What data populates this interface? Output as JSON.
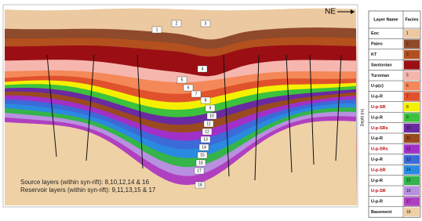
{
  "section": {
    "direction": "NE",
    "depth_label": "Depth (m)",
    "notes": [
      "Source layers (within syn-rift): 8,10,12,14 & 16",
      "Reservoir layers (within syn-rift): 9,11,13,15 & 17"
    ],
    "labels": [
      "1",
      "2",
      "3",
      "4",
      "5",
      "6",
      "7",
      "8",
      "9",
      "10",
      "11",
      "12",
      "13",
      "14",
      "15",
      "16",
      "17",
      "18"
    ]
  },
  "legend": {
    "header": [
      "Layer Name",
      "Facies"
    ],
    "rows": [
      {
        "name": "Eoc",
        "facies": "1",
        "color": "#ecc9a0"
      },
      {
        "name": "Paleo",
        "facies": "2",
        "color": "#8e4a2a"
      },
      {
        "name": "KT",
        "facies": "3",
        "color": "#b3501e"
      },
      {
        "name": "Santonian",
        "color": "#9b0f14"
      },
      {
        "name": "Turonian",
        "facies": "5",
        "color": "#f6b6ae"
      },
      {
        "name": "U-p(c)",
        "facies": "6",
        "color": "#f48858"
      },
      {
        "name": "U-p-R",
        "facies": "7",
        "color": "#e0522c"
      },
      {
        "name": "U-p-SR",
        "facies": "8",
        "color": "#f5f000",
        "text_color": "#c00000"
      },
      {
        "name": "U-p-R",
        "facies": "9",
        "color": "#3cc23c"
      },
      {
        "name": "U-p-SRs",
        "facies": "10",
        "color": "#6a2aa0",
        "text_color": "#c00000"
      },
      {
        "name": "U-p-R",
        "facies": "11",
        "color": "#9a4a20"
      },
      {
        "name": "U-p-SRs",
        "facies": "12",
        "color": "#a030c8",
        "text_color": "#c00000"
      },
      {
        "name": "U-p-R",
        "facies": "13",
        "color": "#3c6ad8"
      },
      {
        "name": "U-p-SR",
        "facies": "14",
        "color": "#2a8ae0",
        "text_color": "#c00000"
      },
      {
        "name": "U-p-R",
        "facies": "15",
        "color": "#34b44a"
      },
      {
        "name": "U-p-SR",
        "facies": "16",
        "color": "#b890e0",
        "text_color": "#c00000"
      },
      {
        "name": "U-p-R",
        "facies": "17",
        "color": "#b040c0"
      },
      {
        "name": "Basement",
        "facies": "18",
        "color": "#efd1a6"
      }
    ]
  }
}
